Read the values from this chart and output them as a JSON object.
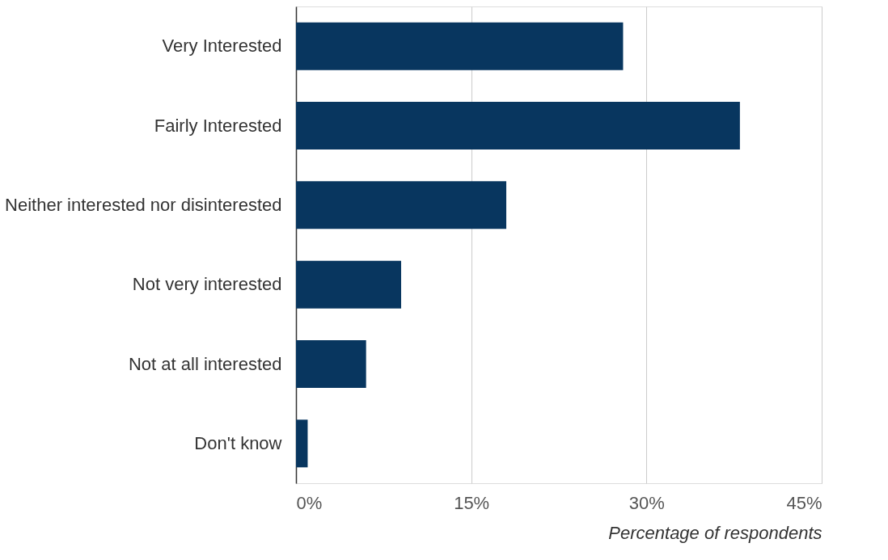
{
  "chart_data": {
    "type": "bar",
    "orientation": "horizontal",
    "categories": [
      "Very Interested",
      "Fairly Interested",
      "Neither interested nor disinterested",
      "Not very interested",
      "Not at all interested",
      "Don't know"
    ],
    "values": [
      28,
      38,
      18,
      9,
      6,
      1
    ],
    "color": "#08365f",
    "xlabel": "Percentage of respondents",
    "xlim": [
      0,
      45
    ],
    "xticks": [
      {
        "value": 0,
        "label": "0%"
      },
      {
        "value": 15,
        "label": "15%"
      },
      {
        "value": 30,
        "label": "30%"
      },
      {
        "value": 45,
        "label": "45%"
      }
    ],
    "grid": "x"
  }
}
